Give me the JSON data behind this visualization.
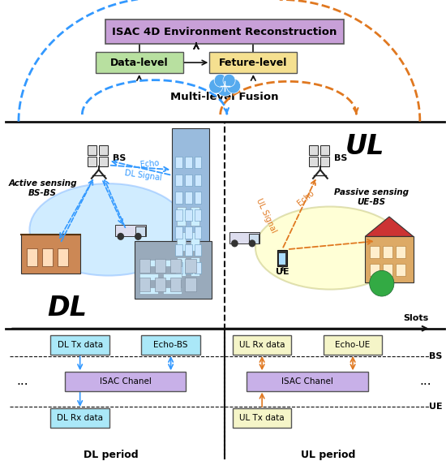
{
  "fig_width": 5.5,
  "fig_height": 5.84,
  "dpi": 100,
  "blue": "#3399ff",
  "orange": "#e07820",
  "black": "#111111",
  "purple_box": {
    "text": "ISAC 4D Environment Reconstruction",
    "fc": "#c8a0d8",
    "ec": "#555555"
  },
  "green_box": {
    "text": "Data-level",
    "fc": "#b8e0a0",
    "ec": "#555555"
  },
  "yellow_box": {
    "text": "Feture-level",
    "fc": "#f5e090",
    "ec": "#555555"
  },
  "fusion_text": "Multi-level Fusion",
  "dl_text": "DL",
  "ul_text": "UL",
  "active_text": "Active sensing\nBS-BS",
  "passive_text": "Passive sensing\nUE-BS",
  "echo_text": "Echo",
  "dl_signal_text": "DL Signal",
  "echo_ul_text": "Echo",
  "ul_signal_text": "UL Signal",
  "bs_text": "BS",
  "ue_text": "UE",
  "slots_text": "Slots",
  "dl_period_text": "DL period",
  "ul_period_text": "UL period",
  "timeline_boxes_dl": [
    {
      "text": "DL Tx data",
      "fc": "#aae8f8",
      "ec": "#555555"
    },
    {
      "text": "Echo-BS",
      "fc": "#aae8f8",
      "ec": "#555555"
    },
    {
      "text": "ISAC Chanel",
      "fc": "#c8b0e8",
      "ec": "#555555"
    },
    {
      "text": "DL Rx data",
      "fc": "#aae8f8",
      "ec": "#555555"
    }
  ],
  "timeline_boxes_ul": [
    {
      "text": "UL Rx data",
      "fc": "#f5f5c8",
      "ec": "#555555"
    },
    {
      "text": "Echo-UE",
      "fc": "#f5f5c8",
      "ec": "#555555"
    },
    {
      "text": "ISAC Chanel",
      "fc": "#c8b0e8",
      "ec": "#555555"
    },
    {
      "text": "UL Tx data",
      "fc": "#f5f5c8",
      "ec": "#555555"
    }
  ]
}
